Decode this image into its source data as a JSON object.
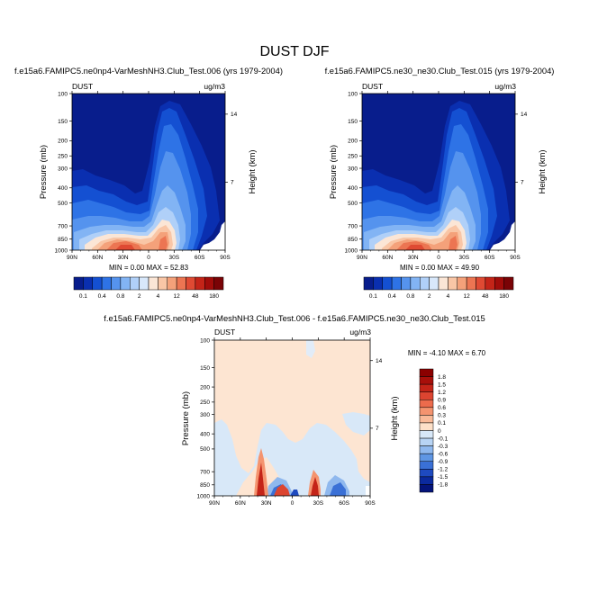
{
  "page_title": "DUST DJF",
  "colors": {
    "ocean_dark": "#081d8c",
    "diff_background": "#fde5d2",
    "diff_negative_light": "#d8e8f8"
  },
  "chart_data": [
    {
      "type": "heatmap",
      "title": "f.e15a6.FAMIPC5.ne0np4-VarMeshNH3.Club_Test.006 (yrs 1979-2004)",
      "variable": "DUST",
      "units": "ug/m3",
      "ylabel": "Pressure (mb)",
      "ylabel_right": "Height (km)",
      "x_ticks": [
        "90N",
        "60N",
        "30N",
        "0",
        "30S",
        "60S",
        "90S"
      ],
      "y_ticks": [
        "100",
        "150",
        "200",
        "250",
        "300",
        "400",
        "500",
        "700",
        "850",
        "1000"
      ],
      "y_ticks_right": [
        "14",
        "7"
      ],
      "ylim": [
        1000,
        100
      ],
      "y_scale": "log",
      "min_max_text": "MIN =   0.00   MAX =  52.83",
      "min": 0.0,
      "max": 52.83,
      "legend_position": "bottom",
      "colorbar_labels": [
        "0.1",
        "0.4",
        "0.8",
        "2",
        "4",
        "12",
        "48",
        "180"
      ],
      "colorbar_colors": [
        "#081d8c",
        "#0a2fb0",
        "#1450d2",
        "#2e73e6",
        "#5593ee",
        "#82b4f4",
        "#b0d0f8",
        "#d8e8fb",
        "#fbe6d6",
        "#f9c6a6",
        "#f4a17a",
        "#ec7552",
        "#df4a33",
        "#c42418",
        "#a10c0a",
        "#7a0306"
      ]
    },
    {
      "type": "heatmap",
      "title": "f.e15a6.FAMIPC5.ne30_ne30.Club_Test.015 (yrs 1979-2004)",
      "variable": "DUST",
      "units": "ug/m3",
      "ylabel": "Pressure (mb)",
      "ylabel_right": "Height (km)",
      "x_ticks": [
        "90N",
        "60N",
        "30N",
        "0",
        "30S",
        "60S",
        "90S"
      ],
      "y_ticks": [
        "100",
        "150",
        "200",
        "250",
        "300",
        "400",
        "500",
        "700",
        "850",
        "1000"
      ],
      "y_ticks_right": [
        "14",
        "7"
      ],
      "ylim": [
        1000,
        100
      ],
      "y_scale": "log",
      "min_max_text": "MIN =   0.00   MAX =  49.90",
      "min": 0.0,
      "max": 49.9,
      "legend_position": "bottom",
      "colorbar_labels": [
        "0.1",
        "0.4",
        "0.8",
        "2",
        "4",
        "12",
        "48",
        "180"
      ],
      "colorbar_colors": [
        "#081d8c",
        "#0a2fb0",
        "#1450d2",
        "#2e73e6",
        "#5593ee",
        "#82b4f4",
        "#b0d0f8",
        "#d8e8fb",
        "#fbe6d6",
        "#f9c6a6",
        "#f4a17a",
        "#ec7552",
        "#df4a33",
        "#c42418",
        "#a10c0a",
        "#7a0306"
      ]
    },
    {
      "type": "heatmap",
      "title": "f.e15a6.FAMIPC5.ne0np4-VarMeshNH3.Club_Test.006 - f.e15a6.FAMIPC5.ne30_ne30.Club_Test.015",
      "variable": "DUST",
      "units": "ug/m3",
      "ylabel": "Pressure (mb)",
      "ylabel_right": "Height (km)",
      "x_ticks": [
        "90N",
        "60N",
        "30N",
        "0",
        "30S",
        "60S",
        "90S"
      ],
      "y_ticks": [
        "100",
        "150",
        "200",
        "250",
        "300",
        "400",
        "500",
        "700",
        "850",
        "1000"
      ],
      "y_ticks_right": [
        "14",
        "7"
      ],
      "ylim": [
        1000,
        100
      ],
      "y_scale": "log",
      "min_max_text": "MIN =  -4.10   MAX =   6.70",
      "min": -4.1,
      "max": 6.7,
      "legend_position": "right",
      "colorbar_labels": [
        "1.8",
        "1.5",
        "1.2",
        "0.9",
        "0.6",
        "0.3",
        "0.1",
        "0",
        "-0.1",
        "-0.3",
        "-0.6",
        "-0.9",
        "-1.2",
        "-1.5",
        "-1.8"
      ],
      "colorbar_colors": [
        "#8b0000",
        "#a80f0a",
        "#c42418",
        "#dc4430",
        "#ec6b4c",
        "#f4946f",
        "#f9ba98",
        "#fde0c8",
        "#d8e8f8",
        "#b8d4f4",
        "#8fb8ee",
        "#5f96e4",
        "#3a70d6",
        "#1e4ac0",
        "#0b2a9e",
        "#04147a"
      ]
    }
  ]
}
